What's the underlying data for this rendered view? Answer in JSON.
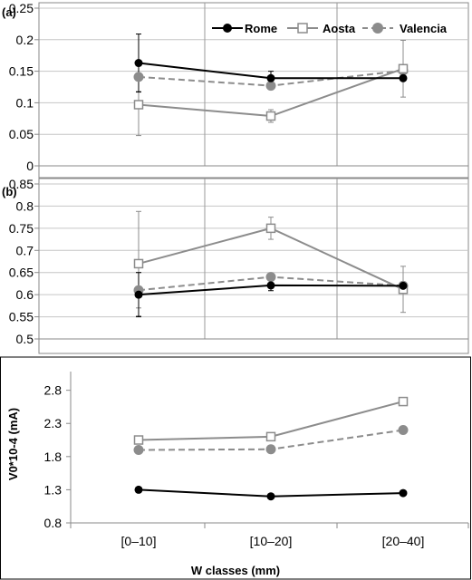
{
  "figure": {
    "xlabel": "W classes (mm)",
    "categories": [
      "[0–10]",
      "[10–20]",
      "[20–40]"
    ]
  },
  "legend": [
    {
      "name": "Rome",
      "color": "#000000",
      "marker": "filled-circle",
      "dash": "solid"
    },
    {
      "name": "Aosta",
      "color": "#8c8c8c",
      "marker": "open-square",
      "dash": "solid"
    },
    {
      "name": "Valencia",
      "color": "#8c8c8c",
      "marker": "filled-circle",
      "dash": "dashed"
    }
  ],
  "chart_data": [
    {
      "type": "line",
      "panel_label": "(a)",
      "categories": [
        "[0–10]",
        "[10–20]",
        "[20–40]"
      ],
      "ylim": [
        0,
        0.25
      ],
      "yticks": [
        "0",
        "0.05",
        "0.1",
        "0.15",
        "0.2",
        "0.25"
      ],
      "ylabel": "",
      "grid": true,
      "legend_position": "top-right",
      "series": [
        {
          "name": "Rome",
          "values": [
            0.163,
            0.139,
            0.139
          ],
          "errors": [
            0.046,
            0.011,
            0
          ]
        },
        {
          "name": "Aosta",
          "values": [
            0.097,
            0.079,
            0.154
          ],
          "errors": [
            0.049,
            0.01,
            0.045
          ]
        },
        {
          "name": "Valencia",
          "values": [
            0.141,
            0.127,
            0.151
          ],
          "errors": [
            0.023,
            0,
            0
          ]
        }
      ]
    },
    {
      "type": "line",
      "panel_label": "(b)",
      "categories": [
        "[0–10]",
        "[10–20]",
        "[20–40]"
      ],
      "ylim": [
        0.5,
        0.85
      ],
      "yticks": [
        "0.5",
        "0.55",
        "0.6",
        "0.65",
        "0.7",
        "0.75",
        "0.8",
        "0.85"
      ],
      "ylabel": "",
      "grid": true,
      "series": [
        {
          "name": "Rome",
          "values": [
            0.6,
            0.621,
            0.62
          ],
          "errors": [
            0.05,
            0.012,
            0
          ]
        },
        {
          "name": "Aosta",
          "values": [
            0.67,
            0.75,
            0.612
          ],
          "errors": [
            0.118,
            0.025,
            0.052
          ]
        },
        {
          "name": "Valencia",
          "values": [
            0.61,
            0.64,
            0.62
          ],
          "errors": [
            0.04,
            0,
            0
          ]
        }
      ]
    },
    {
      "type": "line",
      "panel_label": "",
      "categories": [
        "[0–10]",
        "[10–20]",
        "[20–40]"
      ],
      "ylim": [
        0.8,
        3.0
      ],
      "yticks": [
        "0.8",
        "1.3",
        "1.8",
        "2.3",
        "2.8"
      ],
      "ylabel": "V0*10-4 (mA)",
      "grid": false,
      "series": [
        {
          "name": "Rome",
          "values": [
            1.3,
            1.2,
            1.25
          ]
        },
        {
          "name": "Aosta",
          "values": [
            2.05,
            2.1,
            2.63
          ]
        },
        {
          "name": "Valencia",
          "values": [
            1.9,
            1.91,
            2.2
          ]
        }
      ]
    }
  ]
}
